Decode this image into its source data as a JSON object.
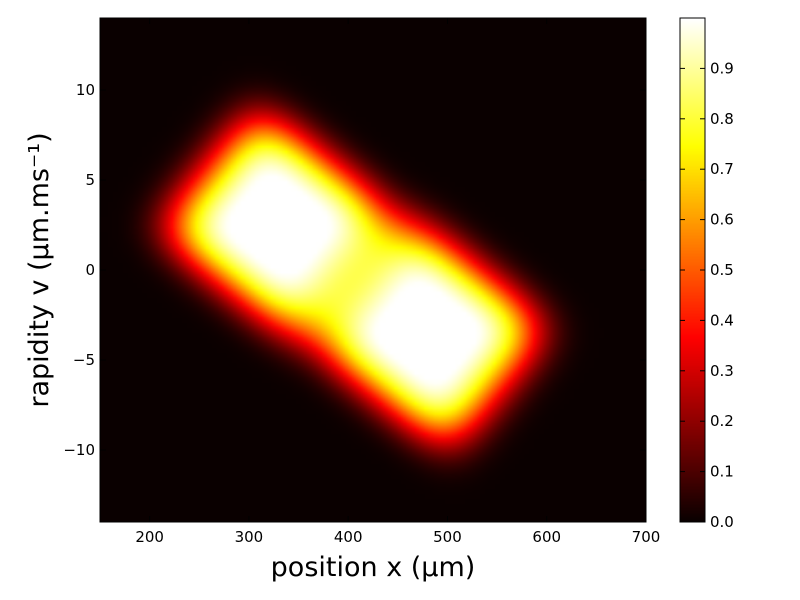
{
  "chart_data": {
    "type": "heatmap",
    "title": "",
    "xlabel": "position x (μm)",
    "ylabel": "rapidity v (μm.ms⁻¹)",
    "xlim": [
      150,
      700
    ],
    "ylim": [
      -14,
      14
    ],
    "x_ticks": [
      200,
      300,
      400,
      500,
      600,
      700
    ],
    "y_ticks": [
      -10,
      -5,
      0,
      5,
      10
    ],
    "x_tick_labels": [
      "200",
      "300",
      "400",
      "500",
      "600",
      "700"
    ],
    "y_tick_labels": [
      "−10",
      "−5",
      "0",
      "5",
      "10"
    ],
    "colormap": "hot",
    "colorbar": {
      "range": [
        0.0,
        1.0
      ],
      "ticks": [
        0.0,
        0.1,
        0.2,
        0.3,
        0.4,
        0.5,
        0.6,
        0.7,
        0.8,
        0.9
      ],
      "tick_labels": [
        "0.0",
        "0.1",
        "0.2",
        "0.3",
        "0.4",
        "0.5",
        "0.6",
        "0.7",
        "0.8",
        "0.9"
      ]
    },
    "lobes": [
      {
        "x": 330,
        "v": 2.5,
        "peak": 1.0
      },
      {
        "x": 480,
        "v": -3.5,
        "peak": 1.0
      }
    ],
    "grid": false
  }
}
